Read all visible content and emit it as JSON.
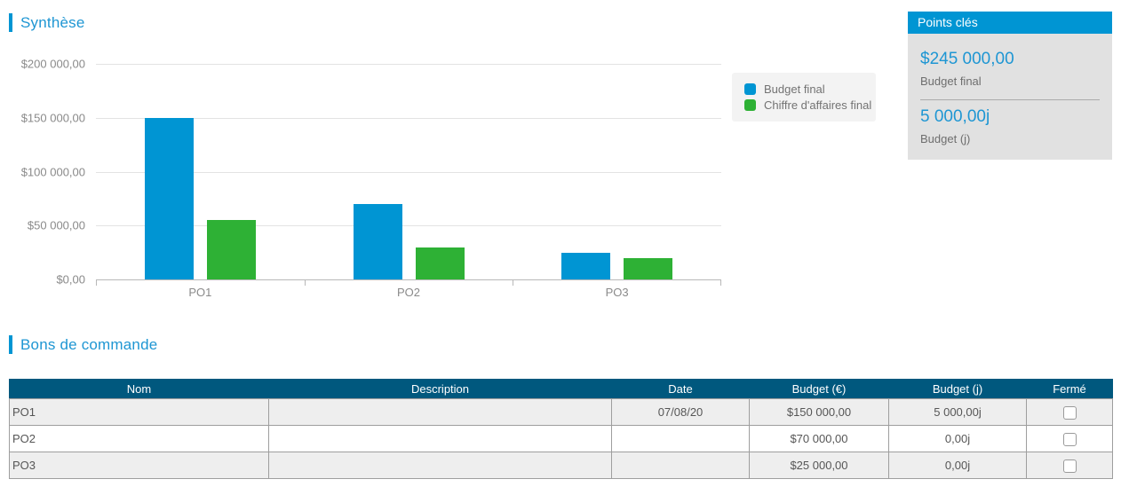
{
  "sections": {
    "synthese_title": "Synthèse",
    "bons_title": "Bons de commande"
  },
  "chart_data": {
    "type": "bar",
    "categories": [
      "PO1",
      "PO2",
      "PO3"
    ],
    "series": [
      {
        "name": "Budget final",
        "color": "#0095D3",
        "values": [
          150000,
          70000,
          25000
        ]
      },
      {
        "name": "Chiffre d'affaires final",
        "color": "#2EB135",
        "values": [
          55000,
          30000,
          20000
        ]
      }
    ],
    "ylim": [
      0,
      200000
    ],
    "yticks": [
      {
        "value": 0,
        "label": "$0,00"
      },
      {
        "value": 50000,
        "label": "$50 000,00"
      },
      {
        "value": 100000,
        "label": "$100 000,00"
      },
      {
        "value": 150000,
        "label": "$150 000,00"
      },
      {
        "value": 200000,
        "label": "$200 000,00"
      }
    ],
    "grid": true,
    "legend_position": "right"
  },
  "points_cles": {
    "title": "Points clés",
    "items": [
      {
        "value": "$245 000,00",
        "label": "Budget final"
      },
      {
        "value": "5 000,00j",
        "label": "Budget (j)"
      }
    ]
  },
  "table": {
    "headers": [
      "Nom",
      "Description",
      "Date",
      "Budget (€)",
      "Budget (j)",
      "Fermé"
    ],
    "rows": [
      {
        "nom": "PO1",
        "description": "",
        "date": "07/08/20",
        "budget_eur": "$150 000,00",
        "budget_j": "5 000,00j",
        "ferme": false
      },
      {
        "nom": "PO2",
        "description": "",
        "date": "",
        "budget_eur": "$70 000,00",
        "budget_j": "0,00j",
        "ferme": false
      },
      {
        "nom": "PO3",
        "description": "",
        "date": "",
        "budget_eur": "$25 000,00",
        "budget_j": "0,00j",
        "ferme": false
      }
    ]
  },
  "colors": {
    "accent": "#0095D3",
    "green": "#2EB135",
    "title_blue": "#1E96D3",
    "table_header": "#00587E"
  }
}
